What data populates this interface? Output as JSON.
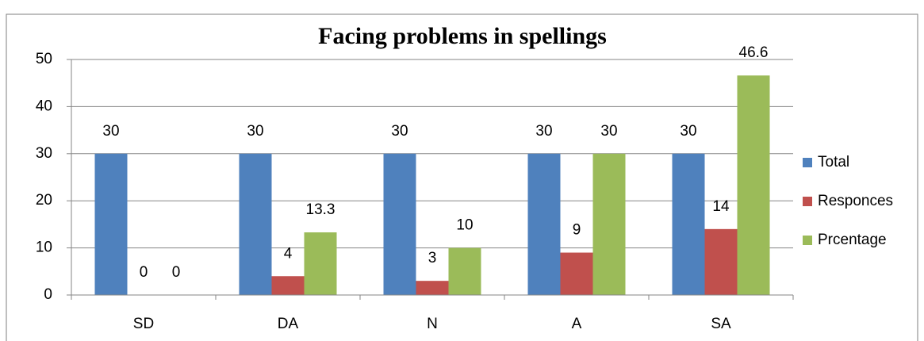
{
  "chart_data": {
    "type": "bar",
    "title": "Facing problems in spellings",
    "categories": [
      "SD",
      "DA",
      "N",
      "A",
      "SA"
    ],
    "series": [
      {
        "name": "Total",
        "color": "#4f81bd",
        "values": [
          30,
          30,
          30,
          30,
          30
        ]
      },
      {
        "name": "Responces",
        "color": "#c0504d",
        "values": [
          0,
          4,
          3,
          9,
          14
        ]
      },
      {
        "name": "Prcentage",
        "color": "#9bbb59",
        "values": [
          0,
          13.3,
          10,
          30,
          46.6
        ]
      }
    ],
    "ylim": [
      0,
      50
    ],
    "yticks": [
      0,
      10,
      20,
      30,
      40,
      50
    ],
    "grid": true,
    "legend": "right"
  }
}
